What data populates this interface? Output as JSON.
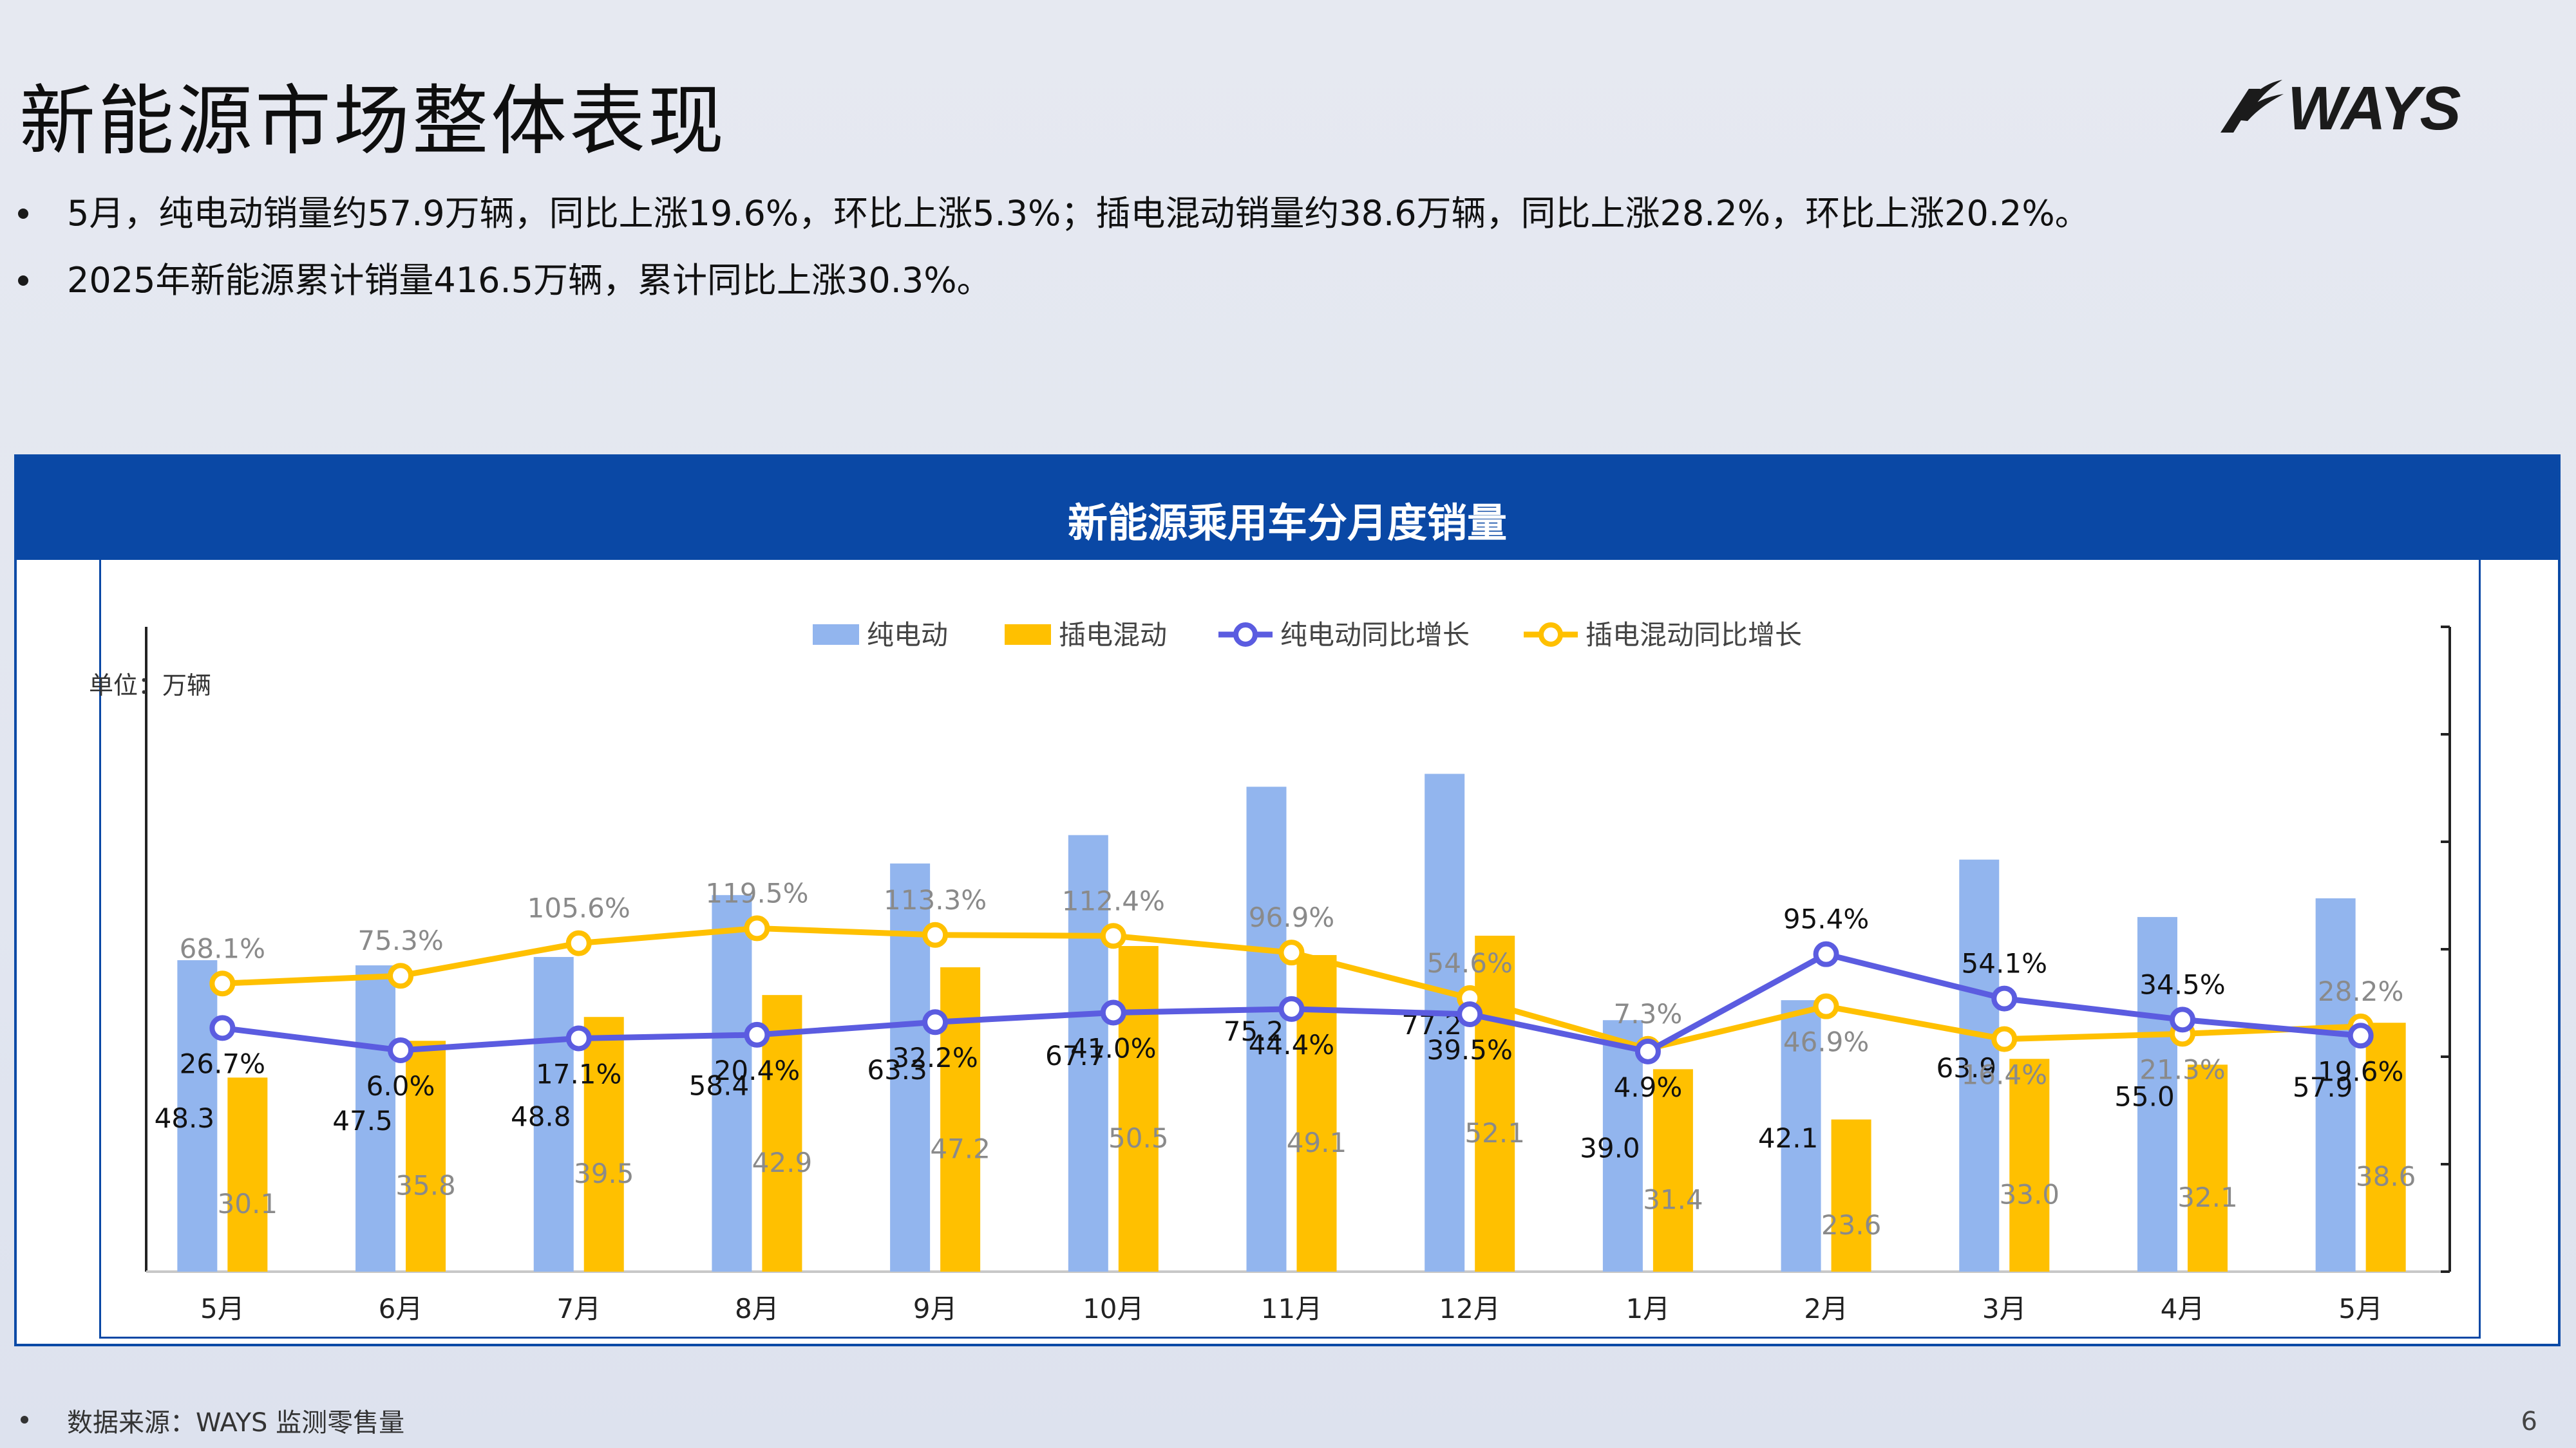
{
  "slide": {
    "title": "新能源市场整体表现",
    "logo_text": "WAYS",
    "bullets": [
      "5月，纯电动销量约57.9万辆，同比上涨19.6%，环比上涨5.3%；插电混动销量约38.6万辆，同比上涨28.2%，环比上涨20.2%。",
      "2025年新能源累计销量416.5万辆，累计同比上涨30.3%。"
    ],
    "footnote": "数据来源：WAYS 监测零售量",
    "page_number": "6"
  },
  "colors": {
    "bev_bar": "#92b5ee",
    "phev_bar": "#ffc000",
    "bev_line": "#5b5ce0",
    "phev_line": "#ffc000",
    "header_blue": "#0a48a5"
  },
  "chart_data": {
    "type": "bar",
    "title": "新能源乘用车分月度销量",
    "unit_label": "单位：万辆",
    "categories": [
      "5月",
      "6月",
      "7月",
      "8月",
      "9月",
      "10月",
      "11月",
      "12月",
      "1月",
      "2月",
      "3月",
      "4月",
      "5月"
    ],
    "series": [
      {
        "name": "纯电动",
        "kind": "bar",
        "axis": "left",
        "values": [
          48.3,
          47.5,
          48.8,
          58.4,
          63.3,
          67.7,
          75.2,
          77.2,
          39.0,
          42.1,
          63.9,
          55.0,
          57.9
        ]
      },
      {
        "name": "插电混动",
        "kind": "bar",
        "axis": "left",
        "values": [
          30.1,
          35.8,
          39.5,
          42.9,
          47.2,
          50.5,
          49.1,
          52.1,
          31.4,
          23.6,
          33.0,
          32.1,
          38.6
        ]
      },
      {
        "name": "纯电动同比增长",
        "kind": "line",
        "axis": "right",
        "values": [
          26.7,
          6.0,
          17.1,
          20.4,
          32.2,
          41.0,
          44.4,
          39.5,
          4.9,
          95.4,
          54.1,
          34.5,
          19.6
        ],
        "labels": [
          "26.7%",
          "6.0%",
          "17.1%",
          "20.4%",
          "32.2%",
          "41.0%",
          "44.4%",
          "39.5%",
          "4.9%",
          "95.4%",
          "54.1%",
          "34.5%",
          "19.6%"
        ]
      },
      {
        "name": "插电混动同比增长",
        "kind": "line",
        "axis": "right",
        "values": [
          68.1,
          75.3,
          105.6,
          119.5,
          113.3,
          112.4,
          96.9,
          54.6,
          7.3,
          46.9,
          16.4,
          21.3,
          28.2
        ],
        "labels": [
          "68.1%",
          "75.3%",
          "105.6%",
          "119.5%",
          "113.3%",
          "112.4%",
          "96.9%",
          "54.6%",
          "7.3%",
          "46.9%",
          "16.4%",
          "21.3%",
          "28.2%"
        ]
      }
    ],
    "bar_labels": {
      "bev": [
        "48.3",
        "47.5",
        "48.8",
        "58.4",
        "63.3",
        "67.7",
        "75.2",
        "77.2",
        "39.0",
        "42.1",
        "63.9",
        "55.0",
        "57.9"
      ],
      "phev": [
        "30.1",
        "35.8",
        "39.5",
        "42.9",
        "47.2",
        "50.5",
        "49.1",
        "52.1",
        "31.4",
        "23.6",
        "33.0",
        "32.1",
        "38.6"
      ]
    },
    "ylim": [
      0,
      100
    ],
    "y2lim": [
      -200,
      400
    ],
    "legend_position": "top-center",
    "grid": false
  }
}
